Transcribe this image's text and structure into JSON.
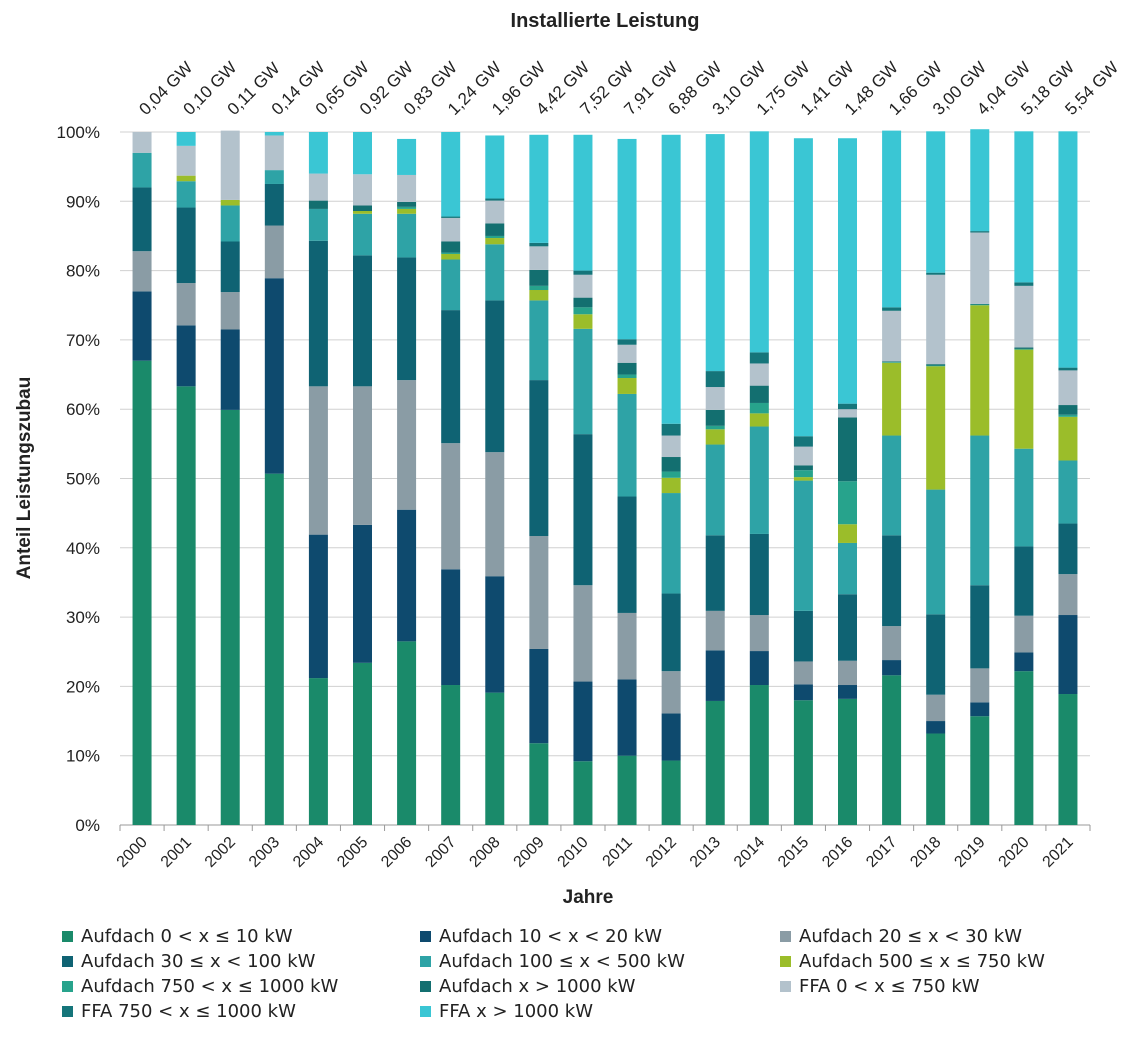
{
  "chart_data": {
    "type": "bar",
    "stacked": true,
    "title": "Installierte Leistung",
    "xlabel": "Jahre",
    "ylabel": "Anteil Leistungszubau",
    "ylim": [
      0,
      100
    ],
    "y_ticks": [
      "0%",
      "10%",
      "20%",
      "30%",
      "40%",
      "50%",
      "60%",
      "70%",
      "80%",
      "90%",
      "100%"
    ],
    "grid": true,
    "legend_position": "bottom",
    "categories": [
      "2000",
      "2001",
      "2002",
      "2003",
      "2004",
      "2005",
      "2006",
      "2007",
      "2008",
      "2009",
      "2010",
      "2011",
      "2012",
      "2013",
      "2014",
      "2015",
      "2016",
      "2017",
      "2018",
      "2019",
      "2020",
      "2021"
    ],
    "top_labels": [
      "0,04 GW",
      "0,10 GW",
      "0,11 GW",
      "0,14 GW",
      "0,65 GW",
      "0,92 GW",
      "0,83 GW",
      "1,24 GW",
      "1,96 GW",
      "4,42 GW",
      "7,52 GW",
      "7,91 GW",
      "6,88 GW",
      "3,10 GW",
      "1,75 GW",
      "1,41 GW",
      "1,48 GW",
      "1,66 GW",
      "3,00 GW",
      "4,04 GW",
      "5,18 GW",
      "5,54 GW"
    ],
    "series": [
      {
        "name": "Aufdach 0 < x ≤ 10 kW",
        "color": "#1a8a6a",
        "values": [
          67.0,
          63.3,
          59.9,
          50.7,
          21.2,
          23.4,
          26.5,
          20.2,
          19.1,
          11.8,
          9.2,
          10.0,
          9.3,
          17.9,
          20.2,
          18.0,
          18.2,
          21.6,
          13.2,
          15.7,
          22.2,
          18.9
        ]
      },
      {
        "name": "Aufdach 10 < x < 20 kW",
        "color": "#0e4a6e",
        "values": [
          10.0,
          8.8,
          11.6,
          28.2,
          20.7,
          19.9,
          19.0,
          16.7,
          16.8,
          13.6,
          11.5,
          11.0,
          6.8,
          7.3,
          4.9,
          2.3,
          2.0,
          2.2,
          1.8,
          2.0,
          2.7,
          11.4
        ]
      },
      {
        "name": "Aufdach 20 ≤ x < 30 kW",
        "color": "#8a9ca5",
        "values": [
          5.8,
          6.1,
          5.4,
          7.6,
          21.4,
          20.0,
          18.7,
          18.2,
          17.9,
          16.3,
          13.9,
          9.6,
          6.1,
          5.7,
          5.2,
          3.3,
          3.5,
          4.9,
          3.8,
          4.9,
          5.3,
          5.9
        ]
      },
      {
        "name": "Aufdach 30 ≤ x < 100 kW",
        "color": "#0f6373",
        "values": [
          9.2,
          10.9,
          7.3,
          6.0,
          21.0,
          18.9,
          17.7,
          19.2,
          21.9,
          22.5,
          21.8,
          16.8,
          11.2,
          10.9,
          11.7,
          7.3,
          9.6,
          13.1,
          11.6,
          12.0,
          10.0,
          7.3
        ]
      },
      {
        "name": "Aufdach 100 ≤ x < 500 kW",
        "color": "#2ea3a6",
        "values": [
          5.0,
          3.8,
          5.2,
          2.0,
          4.6,
          6.0,
          6.3,
          7.3,
          8.1,
          11.5,
          15.2,
          14.8,
          14.5,
          13.1,
          15.5,
          18.8,
          7.4,
          14.4,
          18.0,
          21.6,
          14.1,
          9.1
        ]
      },
      {
        "name": "Aufdach 500 ≤ x ≤ 750 kW",
        "color": "#9bbd2a",
        "values": [
          0,
          0.8,
          0.8,
          0,
          0,
          0.4,
          0.7,
          0.8,
          0.9,
          1.5,
          2.1,
          2.3,
          2.2,
          2.2,
          1.9,
          0.5,
          2.7,
          10.5,
          17.8,
          18.8,
          14.3,
          6.3
        ]
      },
      {
        "name": "Aufdach 750 < x ≤ 1000 kW",
        "color": "#27a38c",
        "values": [
          0,
          0,
          0,
          0,
          0,
          0,
          0.3,
          0.2,
          0.3,
          0.6,
          1.0,
          0.5,
          0.9,
          0.5,
          1.5,
          1.0,
          6.2,
          0.1,
          0.1,
          0.1,
          0.1,
          0.3
        ]
      },
      {
        "name": "Aufdach x > 1000 kW",
        "color": "#136f70",
        "values": [
          0,
          0,
          0,
          0,
          1.2,
          0.8,
          0.7,
          1.6,
          1.8,
          2.3,
          1.4,
          1.7,
          2.1,
          2.3,
          2.5,
          0.7,
          9.2,
          0.1,
          0.2,
          0.1,
          0.2,
          1.4
        ]
      },
      {
        "name": "FFA 0 < x ≤ 750 kW",
        "color": "#b3c2cc",
        "values": [
          3.0,
          4.3,
          10.0,
          5.0,
          3.9,
          4.5,
          3.9,
          3.4,
          3.3,
          3.4,
          3.3,
          2.6,
          3.1,
          3.3,
          3.2,
          2.7,
          1.2,
          7.3,
          12.9,
          10.3,
          8.9,
          5.0
        ]
      },
      {
        "name": "FFA 750 < x ≤ 1000 kW",
        "color": "#15757a",
        "values": [
          0,
          0,
          0,
          0,
          0,
          0,
          0,
          0.2,
          0.3,
          0.5,
          0.6,
          0.8,
          1.7,
          2.3,
          1.6,
          1.5,
          0.8,
          0.5,
          0.3,
          0.2,
          0.5,
          0.4
        ]
      },
      {
        "name": "FFA x > 1000 kW",
        "color": "#3ac6d4",
        "values": [
          0,
          2.0,
          0,
          0.5,
          6.0,
          6.1,
          5.2,
          12.2,
          9.1,
          15.6,
          19.6,
          28.9,
          41.7,
          34.2,
          31.9,
          43.0,
          38.3,
          25.5,
          20.4,
          14.7,
          21.8,
          34.1
        ]
      }
    ]
  }
}
